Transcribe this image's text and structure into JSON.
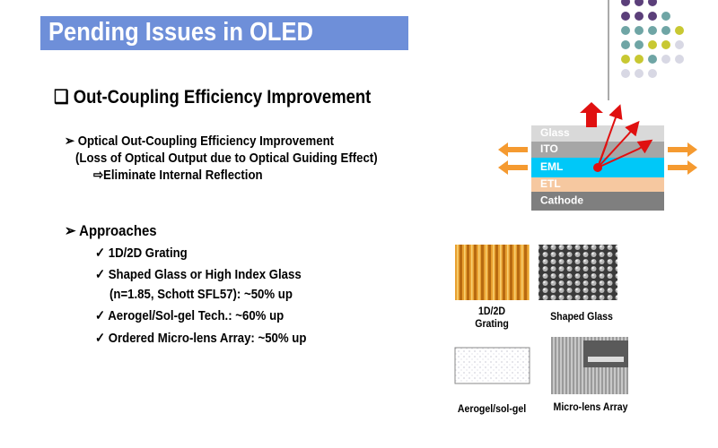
{
  "title": "Pending Issues in OLED",
  "heading": "❑ Out-Coupling Efficiency Improvement",
  "section1": {
    "bullet": "➢ Optical Out-Coupling Efficiency Improvement",
    "detail": "(Loss of Optical Output due to Optical Guiding Effect)",
    "result": "⇨Eliminate Internal Reflection"
  },
  "section2": {
    "bullet": "➢ Approaches",
    "items": [
      "✓ 1D/2D Grating",
      "✓ Shaped Glass or High Index Glass",
      "(n=1.85, Schott SFL57): ~50% up",
      "✓ Aerogel/Sol-gel Tech.: ~60% up",
      "✓ Ordered Micro-lens Array: ~50% up"
    ]
  },
  "diagram": {
    "layers": [
      "Glass",
      "ITO",
      "EML",
      "ETL",
      "Cathode"
    ]
  },
  "images": [
    {
      "caption": [
        "1D/2D",
        "Grating"
      ]
    },
    {
      "caption": [
        "Shaped Glass"
      ]
    },
    {
      "caption": [
        "Aerogel/sol-gel"
      ]
    },
    {
      "caption": [
        "Micro-lens Array"
      ]
    }
  ]
}
